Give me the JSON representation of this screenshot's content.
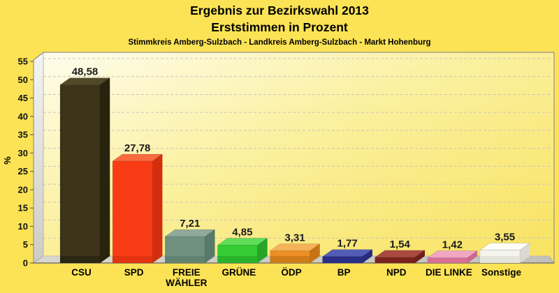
{
  "page": {
    "background": "#FCE355"
  },
  "chart_data": {
    "type": "bar",
    "style": "3d-bars",
    "title": "Ergebnis zur Bezirkswahl 2013",
    "subtitle": "Erststimmen in Prozent",
    "caption": "Stimmkreis Amberg-Sulzbach - Landkreis Amberg-Sulzbach - Markt Hohenburg",
    "xlabel": "",
    "ylabel": "%",
    "ylim": [
      0,
      55
    ],
    "ytick_step": 5,
    "grid": "dashed-horizontal",
    "legend": "none",
    "categories": [
      "CSU",
      "SPD",
      "FREIE WÄHLER",
      "GRÜNE",
      "ÖDP",
      "BP",
      "NPD",
      "DIE LINKE",
      "Sonstige"
    ],
    "category_label_lines": [
      [
        "CSU"
      ],
      [
        "SPD"
      ],
      [
        "FREIE",
        "WÄHLER"
      ],
      [
        "GRÜNE"
      ],
      [
        "ÖDP"
      ],
      [
        "BP"
      ],
      [
        "NPD"
      ],
      [
        "DIE LINKE"
      ],
      [
        "Sonstige"
      ]
    ],
    "values": [
      48.58,
      27.78,
      7.21,
      4.85,
      3.31,
      1.77,
      1.54,
      1.42,
      3.55
    ],
    "value_labels": [
      "48,58",
      "27,78",
      "7,21",
      "4,85",
      "3,31",
      "1,77",
      "1,54",
      "1,42",
      "3,55"
    ],
    "bar_colors": [
      {
        "party": "CSU",
        "front": "#3B3418",
        "top": "#514927",
        "side": "#28230D",
        "bottom": "#2C2712"
      },
      {
        "party": "SPD",
        "front": "#F93C16",
        "top": "#FB6B3F",
        "side": "#D32F0E",
        "bottom": "#E1330F"
      },
      {
        "party": "FREIE WÄHLER",
        "front": "#6F8F7F",
        "top": "#90A99B",
        "side": "#5A7A69",
        "bottom": "#618270"
      },
      {
        "party": "GRÜNE",
        "front": "#33CC33",
        "top": "#60DE58",
        "side": "#27A527",
        "bottom": "#2BB22B"
      },
      {
        "party": "ÖDP",
        "front": "#EE8F25",
        "top": "#F5B259",
        "side": "#C67316",
        "bottom": "#D07C1B"
      },
      {
        "party": "BP",
        "front": "#31379B",
        "top": "#535DB6",
        "side": "#262B7D",
        "bottom": "#2A2F86"
      },
      {
        "party": "NPD",
        "front": "#8D2A23",
        "top": "#A84A3F",
        "side": "#711F1A",
        "bottom": "#7A231D"
      },
      {
        "party": "DIE LINKE",
        "front": "#E780AA",
        "top": "#F1A7C4",
        "side": "#CD6790",
        "bottom": "#D66E96"
      },
      {
        "party": "Sonstige",
        "front": "#F5F5EE",
        "top": "#FDFDF9",
        "side": "#D9D9D1",
        "bottom": "#E4E4DC"
      }
    ],
    "panel_colors": {
      "border": "#97938B",
      "baseline": "#6E6A60",
      "gridline": "#C9C5BD",
      "tick": "#55524A",
      "tick_label": "#111111",
      "value_label": "#1A1A1A",
      "category_label": "#000000"
    }
  }
}
